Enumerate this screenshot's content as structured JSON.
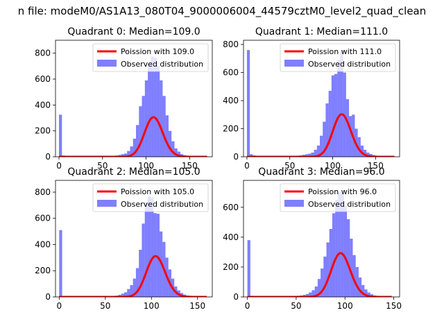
{
  "figure": {
    "suptitle": "n file: modeM0/AS1A13_080T04_9000006004_44579cztM0_level2_quad_clean"
  },
  "colors": {
    "hist": "#0000ff",
    "curve": "#ff0000",
    "axes": "#000000",
    "background": "#ffffff"
  },
  "chart_data": [
    {
      "type": "bar",
      "title": "Quadrant 0: Median=109.0",
      "xlim": [
        -4,
        176
      ],
      "ylim": [
        0,
        900
      ],
      "xticks": [
        0,
        50,
        100,
        150
      ],
      "yticks": [
        0,
        200,
        400,
        600,
        800
      ],
      "legend": {
        "placement": "top-right",
        "entries": [
          "Poission with 109.0",
          "Observed distribution"
        ]
      },
      "series": [
        {
          "name": "Observed distribution",
          "kind": "histogram",
          "bin_width": 3.4,
          "x": [
            0,
            3.4,
            6.8,
            10.2,
            13.6,
            17,
            20.4,
            23.8,
            27.2,
            30.6,
            34,
            37.4,
            40.8,
            44.2,
            47.6,
            51,
            54.4,
            57.8,
            61.2,
            64.6,
            68,
            71.4,
            74.8,
            78.2,
            81.6,
            85,
            88.4,
            91.8,
            95.2,
            98.6,
            102,
            105.4,
            108.8,
            112.2,
            115.6,
            119,
            122.4,
            125.8,
            129.2,
            132.6,
            136,
            139.4,
            142.8,
            146.2,
            149.6,
            153,
            156.4,
            159.8,
            163.2,
            166.6
          ],
          "values": [
            325,
            10,
            6,
            4,
            3,
            3,
            2,
            2,
            2,
            2,
            2,
            3,
            3,
            3,
            3,
            4,
            5,
            6,
            8,
            10,
            14,
            20,
            25,
            45,
            80,
            140,
            245,
            390,
            470,
            590,
            720,
            775,
            765,
            700,
            590,
            470,
            320,
            200,
            120,
            65,
            40,
            20,
            12,
            8,
            5,
            4,
            3,
            2,
            2,
            1
          ]
        },
        {
          "name": "Poission with 109.0",
          "kind": "poisson",
          "lambda": 109.0,
          "scale": 8000,
          "x_range": [
            0,
            170
          ]
        }
      ]
    },
    {
      "type": "bar",
      "title": "Quadrant 1: Median=111.0",
      "xlim": [
        -4,
        178
      ],
      "ylim": [
        0,
        830
      ],
      "xticks": [
        0,
        50,
        100,
        150
      ],
      "yticks": [
        0,
        200,
        400,
        600,
        800
      ],
      "legend": {
        "placement": "top-right",
        "entries": [
          "Poission with 111.0",
          "Observed distribution"
        ]
      },
      "series": [
        {
          "name": "Observed distribution",
          "kind": "histogram",
          "bin_width": 3.4,
          "x": [
            0,
            3.4,
            6.8,
            10.2,
            13.6,
            17,
            20.4,
            23.8,
            27.2,
            30.6,
            34,
            37.4,
            40.8,
            44.2,
            47.6,
            51,
            54.4,
            57.8,
            61.2,
            64.6,
            68,
            71.4,
            74.8,
            78.2,
            81.6,
            85,
            88.4,
            91.8,
            95.2,
            98.6,
            102,
            105.4,
            108.8,
            112.2,
            115.6,
            119,
            122.4,
            125.8,
            129.2,
            132.6,
            136,
            139.4,
            142.8,
            146.2,
            149.6,
            153,
            156.4,
            159.8,
            163.2,
            166.6
          ],
          "values": [
            760,
            18,
            10,
            6,
            4,
            3,
            2,
            2,
            2,
            2,
            2,
            3,
            3,
            3,
            4,
            4,
            5,
            8,
            10,
            14,
            18,
            22,
            30,
            50,
            80,
            150,
            250,
            380,
            470,
            580,
            590,
            690,
            760,
            600,
            410,
            290,
            300,
            200,
            140,
            80,
            50,
            30,
            20,
            12,
            8,
            5,
            4,
            3,
            2,
            1
          ]
        },
        {
          "name": "Poission with 111.0",
          "kind": "poisson",
          "lambda": 111.0,
          "scale": 8000,
          "x_range": [
            0,
            172
          ]
        }
      ]
    },
    {
      "type": "bar",
      "title": "Quadrant 2: Median=105.0",
      "xlim": [
        -4,
        166
      ],
      "ylim": [
        0,
        890
      ],
      "xticks": [
        0,
        50,
        100,
        150
      ],
      "yticks": [
        0,
        200,
        400,
        600,
        800
      ],
      "legend": {
        "placement": "top-right",
        "entries": [
          "Poission with 105.0",
          "Observed distribution"
        ]
      },
      "series": [
        {
          "name": "Observed distribution",
          "kind": "histogram",
          "bin_width": 3.2,
          "x": [
            0,
            3.2,
            6.4,
            9.6,
            12.8,
            16,
            19.2,
            22.4,
            25.6,
            28.8,
            32,
            35.2,
            38.4,
            41.6,
            44.8,
            48,
            51.2,
            54.4,
            57.6,
            60.8,
            64,
            67.2,
            70.4,
            73.6,
            76.8,
            80,
            83.2,
            86.4,
            89.6,
            92.8,
            96,
            99.2,
            102.4,
            105.6,
            108.8,
            112,
            115.2,
            118.4,
            121.6,
            124.8,
            128,
            131.2,
            134.4,
            137.6,
            140.8,
            144,
            147.2,
            150.4,
            153.6,
            156.8
          ],
          "values": [
            510,
            8,
            5,
            4,
            3,
            3,
            2,
            2,
            2,
            2,
            2,
            3,
            3,
            3,
            3,
            4,
            5,
            6,
            8,
            10,
            16,
            25,
            35,
            60,
            90,
            140,
            220,
            360,
            560,
            720,
            770,
            760,
            640,
            635,
            500,
            420,
            300,
            210,
            140,
            80,
            50,
            30,
            18,
            10,
            6,
            4,
            3,
            2,
            2,
            1
          ]
        },
        {
          "name": "Poission with 105.0",
          "kind": "poisson",
          "lambda": 105.0,
          "scale": 8000,
          "x_range": [
            0,
            160
          ]
        }
      ]
    },
    {
      "type": "bar",
      "title": "Quadrant 3: Median=96.0",
      "xlim": [
        -4,
        156
      ],
      "ylim": [
        0,
        780
      ],
      "xticks": [
        0,
        50,
        100,
        150
      ],
      "yticks": [
        0,
        200,
        400,
        600
      ],
      "legend": {
        "placement": "top-right",
        "entries": [
          "Poission with 96.0",
          "Observed distribution"
        ]
      },
      "series": [
        {
          "name": "Observed distribution",
          "kind": "histogram",
          "bin_width": 3.0,
          "x": [
            0,
            3,
            6,
            9,
            12,
            15,
            18,
            21,
            24,
            27,
            30,
            33,
            36,
            39,
            42,
            45,
            48,
            51,
            54,
            57,
            60,
            63,
            66,
            69,
            72,
            75,
            78,
            81,
            84,
            87,
            90,
            93,
            96,
            99,
            102,
            105,
            108,
            111,
            114,
            117,
            120,
            123,
            126,
            129,
            132,
            135,
            138,
            141,
            144,
            147
          ],
          "values": [
            380,
            8,
            5,
            4,
            3,
            3,
            2,
            2,
            2,
            2,
            2,
            3,
            3,
            3,
            4,
            5,
            6,
            8,
            10,
            14,
            20,
            30,
            45,
            70,
            120,
            190,
            270,
            365,
            455,
            560,
            650,
            700,
            690,
            610,
            520,
            390,
            280,
            200,
            130,
            80,
            50,
            30,
            18,
            10,
            6,
            4,
            3,
            2,
            2,
            1
          ]
        },
        {
          "name": "Poission with 96.0",
          "kind": "poisson",
          "lambda": 96.0,
          "scale": 7200,
          "x_range": [
            0,
            148
          ]
        }
      ]
    }
  ]
}
